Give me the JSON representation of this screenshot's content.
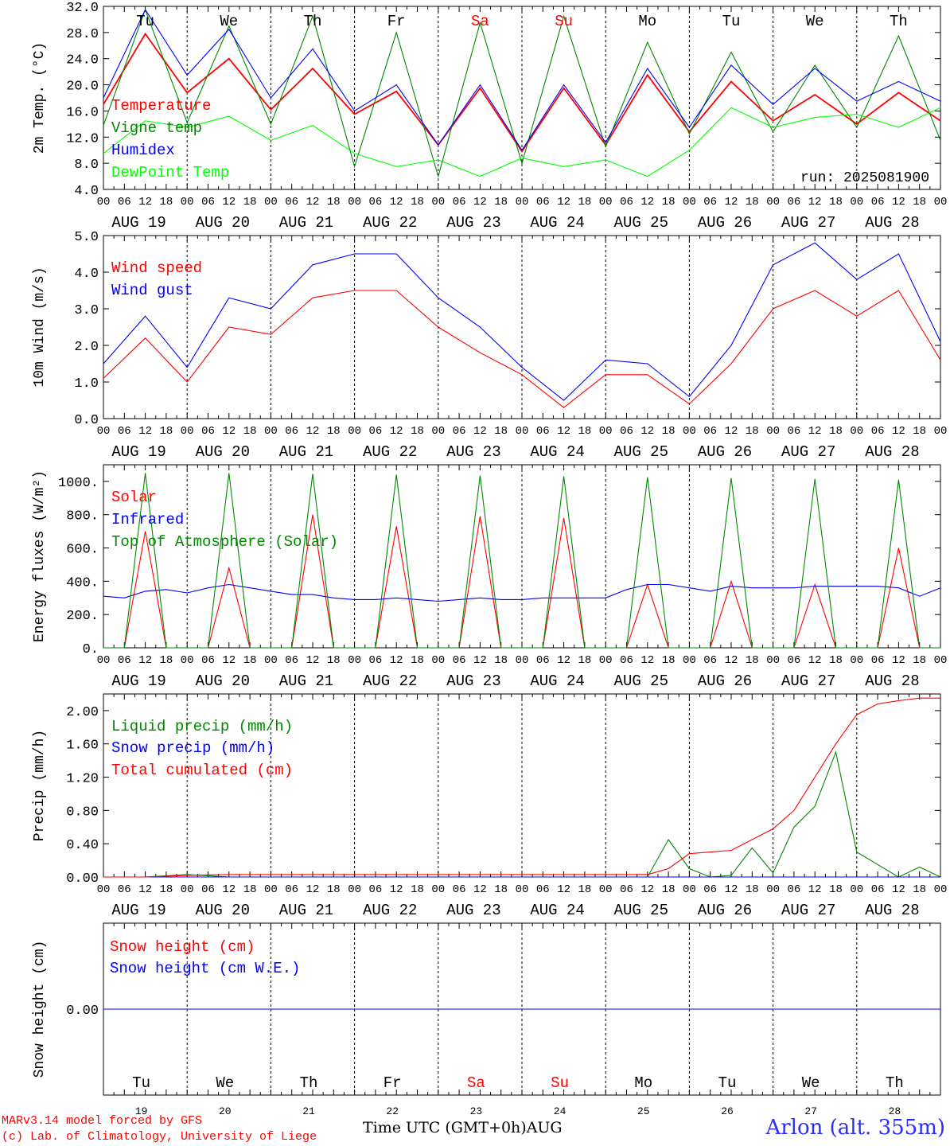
{
  "footer": {
    "model": "MARv3.14 model forced by GFS",
    "credit": "(c) Lab. of Climatology, University of Liege",
    "time_label": "Time UTC (GMT+0h)",
    "month": "AUG",
    "station": "Arlon (alt. 355m)"
  },
  "colors": {
    "red": "#ff0000",
    "green": "#008800",
    "blue": "#0000ff",
    "lightgreen": "#00ff00",
    "weekend": "#ff0000"
  },
  "chart_data": [
    {
      "id": "temp",
      "type": "line",
      "ylabel": "2m Temp. (°C)",
      "ylim": [
        4.0,
        32.0
      ],
      "yticks": [
        "4.0",
        "8.0",
        "12.0",
        "16.0",
        "20.0",
        "24.0",
        "28.0",
        "32.0"
      ],
      "annotation": "run: 2025081900",
      "days": [
        "Tu",
        "We",
        "Th",
        "Fr",
        "Sa",
        "Su",
        "Mo",
        "Tu",
        "We",
        "Th"
      ],
      "weekend_days": [
        "Sa",
        "Su"
      ],
      "x_hours": [
        0,
        12,
        24,
        36,
        48,
        60,
        72,
        84,
        96,
        108,
        120,
        132,
        144,
        156,
        168,
        180,
        192,
        204,
        216,
        228,
        240
      ],
      "series": [
        {
          "name": "Temperature",
          "color": "#ff0000",
          "values": [
            17.0,
            27.8,
            18.8,
            24.0,
            16.2,
            22.5,
            15.5,
            19.0,
            10.8,
            19.5,
            9.8,
            19.5,
            10.8,
            21.5,
            12.8,
            20.5,
            14.5,
            18.5,
            14.0,
            18.8,
            14.5
          ]
        },
        {
          "name": "Vigne temp",
          "color": "#008800",
          "values": [
            13.8,
            31.5,
            14.2,
            29.0,
            14.0,
            30.5,
            7.5,
            28.0,
            6.0,
            29.5,
            8.0,
            30.5,
            10.5,
            26.5,
            12.5,
            25.0,
            12.8,
            23.0,
            13.5,
            27.5,
            11.5
          ]
        },
        {
          "name": "Humidex",
          "color": "#0000ff",
          "values": [
            18.0,
            31.5,
            21.5,
            28.5,
            18.0,
            25.5,
            16.0,
            20.0,
            10.8,
            20.0,
            10.0,
            20.0,
            11.2,
            22.5,
            13.5,
            23.0,
            17.0,
            22.5,
            17.5,
            20.5,
            17.5
          ]
        },
        {
          "name": "DewPoint Temp",
          "color": "#00ff00",
          "values": [
            9.5,
            14.5,
            13.5,
            15.2,
            11.5,
            13.8,
            9.5,
            7.5,
            8.5,
            6.0,
            8.8,
            7.5,
            8.5,
            6.0,
            10.0,
            16.5,
            13.5,
            15.0,
            15.5,
            13.5,
            16.5
          ]
        }
      ]
    },
    {
      "id": "wind",
      "type": "line",
      "ylabel": "10m Wind (m/s)",
      "ylim": [
        0.0,
        5.0
      ],
      "yticks": [
        "0.0",
        "1.0",
        "2.0",
        "3.0",
        "4.0",
        "5.0"
      ],
      "dashed_line": 5.0,
      "x_hours": [
        0,
        12,
        24,
        36,
        48,
        60,
        72,
        84,
        96,
        108,
        120,
        132,
        144,
        156,
        168,
        180,
        192,
        204,
        216,
        228,
        240
      ],
      "series": [
        {
          "name": "Wind speed",
          "color": "#ff0000",
          "values": [
            1.1,
            2.2,
            1.0,
            2.5,
            2.3,
            3.3,
            3.5,
            3.5,
            2.5,
            1.8,
            1.2,
            0.3,
            1.2,
            1.2,
            0.4,
            1.5,
            3.0,
            3.5,
            2.8,
            3.5,
            1.6
          ]
        },
        {
          "name": "Wind gust",
          "color": "#0000ff",
          "values": [
            1.5,
            2.8,
            1.4,
            3.3,
            3.0,
            4.2,
            4.5,
            4.5,
            3.3,
            2.5,
            1.4,
            0.5,
            1.6,
            1.5,
            0.6,
            2.0,
            4.2,
            4.8,
            3.8,
            4.5,
            2.1
          ]
        }
      ]
    },
    {
      "id": "energy",
      "type": "line",
      "ylabel": "Energy fluxes (W/m²)",
      "ylim": [
        0,
        1100
      ],
      "yticks": [
        "0.",
        "200.",
        "400.",
        "600.",
        "800.",
        "1000."
      ],
      "x_hours": [
        0,
        6,
        12,
        18,
        24,
        30,
        36,
        42,
        48,
        54,
        60,
        66,
        72,
        78,
        84,
        90,
        96,
        102,
        108,
        114,
        120,
        126,
        132,
        138,
        144,
        150,
        156,
        162,
        168,
        174,
        180,
        186,
        192,
        198,
        204,
        210,
        216,
        222,
        228,
        234,
        240
      ],
      "series": [
        {
          "name": "Solar",
          "color": "#ff0000",
          "values": [
            0,
            0,
            700,
            0,
            0,
            0,
            480,
            0,
            0,
            0,
            800,
            0,
            0,
            0,
            730,
            0,
            0,
            0,
            790,
            0,
            0,
            0,
            780,
            0,
            0,
            0,
            380,
            0,
            0,
            0,
            400,
            0,
            0,
            0,
            380,
            0,
            0,
            0,
            600,
            0,
            0
          ]
        },
        {
          "name": "Infrared",
          "color": "#0000ff",
          "values": [
            310,
            300,
            340,
            350,
            330,
            360,
            380,
            360,
            340,
            320,
            320,
            300,
            290,
            290,
            300,
            290,
            280,
            290,
            300,
            290,
            290,
            300,
            300,
            300,
            300,
            350,
            380,
            380,
            360,
            340,
            370,
            360,
            360,
            360,
            370,
            370,
            370,
            370,
            360,
            310,
            360
          ]
        },
        {
          "name": "Top of Atmosphere (Solar)",
          "color": "#008800",
          "values": [
            0,
            0,
            1050,
            0,
            0,
            0,
            1050,
            0,
            0,
            0,
            1045,
            0,
            0,
            0,
            1040,
            0,
            0,
            0,
            1035,
            0,
            0,
            0,
            1030,
            0,
            0,
            0,
            1025,
            0,
            0,
            0,
            1020,
            0,
            0,
            0,
            1015,
            0,
            0,
            0,
            1010,
            0,
            0
          ]
        }
      ]
    },
    {
      "id": "precip",
      "type": "line",
      "ylabel": "Precip (mm/h)",
      "ylim": [
        0.0,
        2.2
      ],
      "yticks": [
        "0.00",
        "0.40",
        "0.80",
        "1.20",
        "1.60",
        "2.00"
      ],
      "x_hours": [
        0,
        12,
        24,
        36,
        48,
        60,
        72,
        84,
        96,
        108,
        120,
        132,
        144,
        156,
        162,
        168,
        174,
        180,
        186,
        192,
        198,
        204,
        210,
        216,
        222,
        228,
        234,
        240
      ],
      "series": [
        {
          "name": "Liquid precip (mm/h)",
          "color": "#008800",
          "values": [
            0,
            0,
            0.03,
            0,
            0,
            0,
            0,
            0,
            0,
            0,
            0,
            0,
            0,
            0,
            0.45,
            0.1,
            0,
            0.02,
            0.35,
            0.05,
            0.6,
            0.85,
            1.5,
            0.3,
            0.15,
            0,
            0.12,
            0
          ]
        },
        {
          "name": "Snow precip (mm/h)",
          "color": "#0000ff",
          "values": [
            0,
            0,
            0,
            0,
            0,
            0,
            0,
            0,
            0,
            0,
            0,
            0,
            0,
            0,
            0,
            0,
            0,
            0,
            0,
            0,
            0,
            0,
            0,
            0,
            0,
            0,
            0,
            0
          ]
        },
        {
          "name": "Total cumulated (cm)",
          "color": "#ff0000",
          "values": [
            0,
            0,
            0.02,
            0.03,
            0.03,
            0.03,
            0.03,
            0.03,
            0.03,
            0.03,
            0.03,
            0.03,
            0.03,
            0.03,
            0.1,
            0.28,
            0.3,
            0.32,
            0.45,
            0.58,
            0.8,
            1.2,
            1.6,
            1.95,
            2.08,
            2.12,
            2.15,
            2.15
          ]
        }
      ]
    },
    {
      "id": "snow",
      "type": "line",
      "ylabel": "Snow height (cm)",
      "ylim": [
        -1,
        1
      ],
      "yticks": [
        "0.00"
      ],
      "days": [
        "Tu",
        "We",
        "Th",
        "Fr",
        "Sa",
        "Su",
        "Mo",
        "Tu",
        "We",
        "Th"
      ],
      "weekend_days": [
        "Sa",
        "Su"
      ],
      "day_numbers": [
        "19",
        "20",
        "21",
        "22",
        "23",
        "24",
        "25",
        "26",
        "27",
        "28"
      ],
      "x_hours": [
        0,
        240
      ],
      "series": [
        {
          "name": "Snow height (cm)",
          "color": "#ff0000",
          "values": [
            0,
            0
          ]
        },
        {
          "name": "Snow height (cm W.E.)",
          "color": "#0000ff",
          "values": [
            0,
            0
          ]
        }
      ]
    }
  ],
  "x_axis": {
    "hour_labels": [
      "00",
      "06",
      "12",
      "18"
    ],
    "date_labels": [
      "AUG 19",
      "AUG 20",
      "AUG 21",
      "AUG 22",
      "AUG 23",
      "AUG 24",
      "AUG 25",
      "AUG 26",
      "AUG 27",
      "AUG 28"
    ]
  }
}
